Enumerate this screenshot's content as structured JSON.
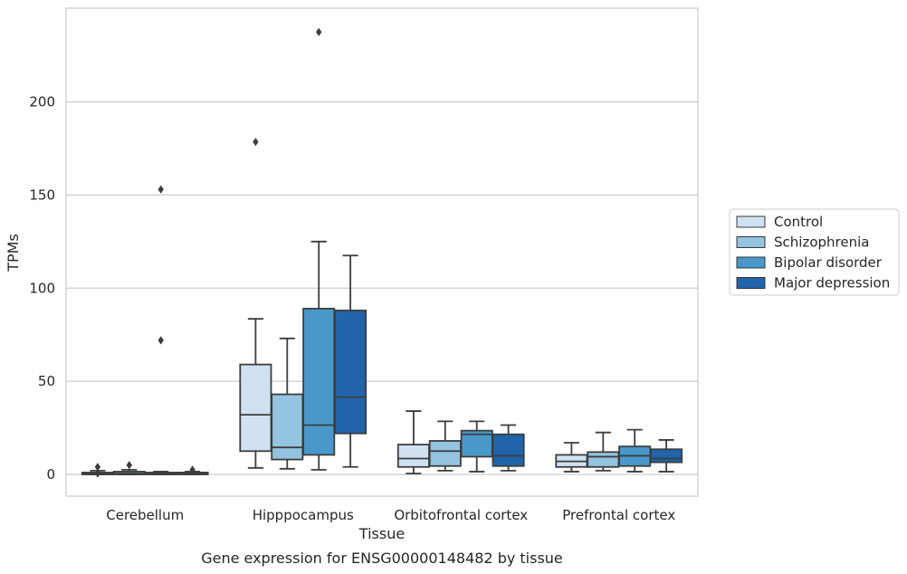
{
  "chart_data": {
    "type": "box",
    "title": "",
    "caption": "Gene expression for ENSG00000148482 by tissue",
    "xlabel": "Tissue",
    "ylabel": "TPMs",
    "ylim": [
      -12,
      250
    ],
    "yticks": [
      0,
      50,
      100,
      150,
      200
    ],
    "grid": true,
    "legend_position": "right",
    "categories": [
      "Cerebellum",
      "Hipppocampus",
      "Orbitofrontal cortex",
      "Prefrontal cortex"
    ],
    "series": [
      {
        "name": "Control",
        "color": "#d0e1f2",
        "boxes": [
          {
            "whislo": 0,
            "q1": 0,
            "med": 0.5,
            "q3": 1,
            "whishi": 2,
            "fliers": [
              4,
              0.5
            ]
          },
          {
            "whislo": 3.5,
            "q1": 12.5,
            "med": 32,
            "q3": 59,
            "whishi": 83.5,
            "fliers": [
              178.5
            ]
          },
          {
            "whislo": 0.5,
            "q1": 4,
            "med": 8.5,
            "q3": 16,
            "whishi": 34,
            "fliers": []
          },
          {
            "whislo": 1.5,
            "q1": 4,
            "med": 7,
            "q3": 10.5,
            "whishi": 17,
            "fliers": []
          }
        ]
      },
      {
        "name": "Schizophrenia",
        "color": "#94c4df",
        "boxes": [
          {
            "whislo": 0,
            "q1": 0,
            "med": 0.5,
            "q3": 1.5,
            "whishi": 2.5,
            "fliers": [
              5
            ]
          },
          {
            "whislo": 3,
            "q1": 8,
            "med": 14.5,
            "q3": 43,
            "whishi": 73,
            "fliers": []
          },
          {
            "whislo": 2,
            "q1": 4.5,
            "med": 12.5,
            "q3": 18,
            "whishi": 28.5,
            "fliers": []
          },
          {
            "whislo": 2,
            "q1": 4,
            "med": 9.5,
            "q3": 12,
            "whishi": 22.5,
            "fliers": []
          }
        ]
      },
      {
        "name": "Bipolar disorder",
        "color": "#4a98c9",
        "boxes": [
          {
            "whislo": 0,
            "q1": 0,
            "med": 0.5,
            "q3": 1,
            "whishi": 1.5,
            "fliers": [
              72,
              153
            ]
          },
          {
            "whislo": 2.5,
            "q1": 10.5,
            "med": 26.5,
            "q3": 89,
            "whishi": 125,
            "fliers": [
              237.5
            ]
          },
          {
            "whislo": 1.5,
            "q1": 9.5,
            "med": 21.5,
            "q3": 23.5,
            "whishi": 28.5,
            "fliers": []
          },
          {
            "whislo": 1.5,
            "q1": 4.5,
            "med": 10,
            "q3": 15,
            "whishi": 24,
            "fliers": []
          }
        ]
      },
      {
        "name": "Major depression",
        "color": "#2164ab",
        "boxes": [
          {
            "whislo": 0,
            "q1": 0,
            "med": 0.5,
            "q3": 1,
            "whishi": 1.5,
            "fliers": [
              2.5
            ]
          },
          {
            "whislo": 4,
            "q1": 22,
            "med": 41.5,
            "q3": 88,
            "whishi": 117.5,
            "fliers": []
          },
          {
            "whislo": 2,
            "q1": 4.5,
            "med": 10,
            "q3": 21.5,
            "whishi": 26.5,
            "fliers": []
          },
          {
            "whislo": 1.5,
            "q1": 6.5,
            "med": 8.5,
            "q3": 13.5,
            "whishi": 18.5,
            "fliers": []
          }
        ]
      }
    ]
  }
}
